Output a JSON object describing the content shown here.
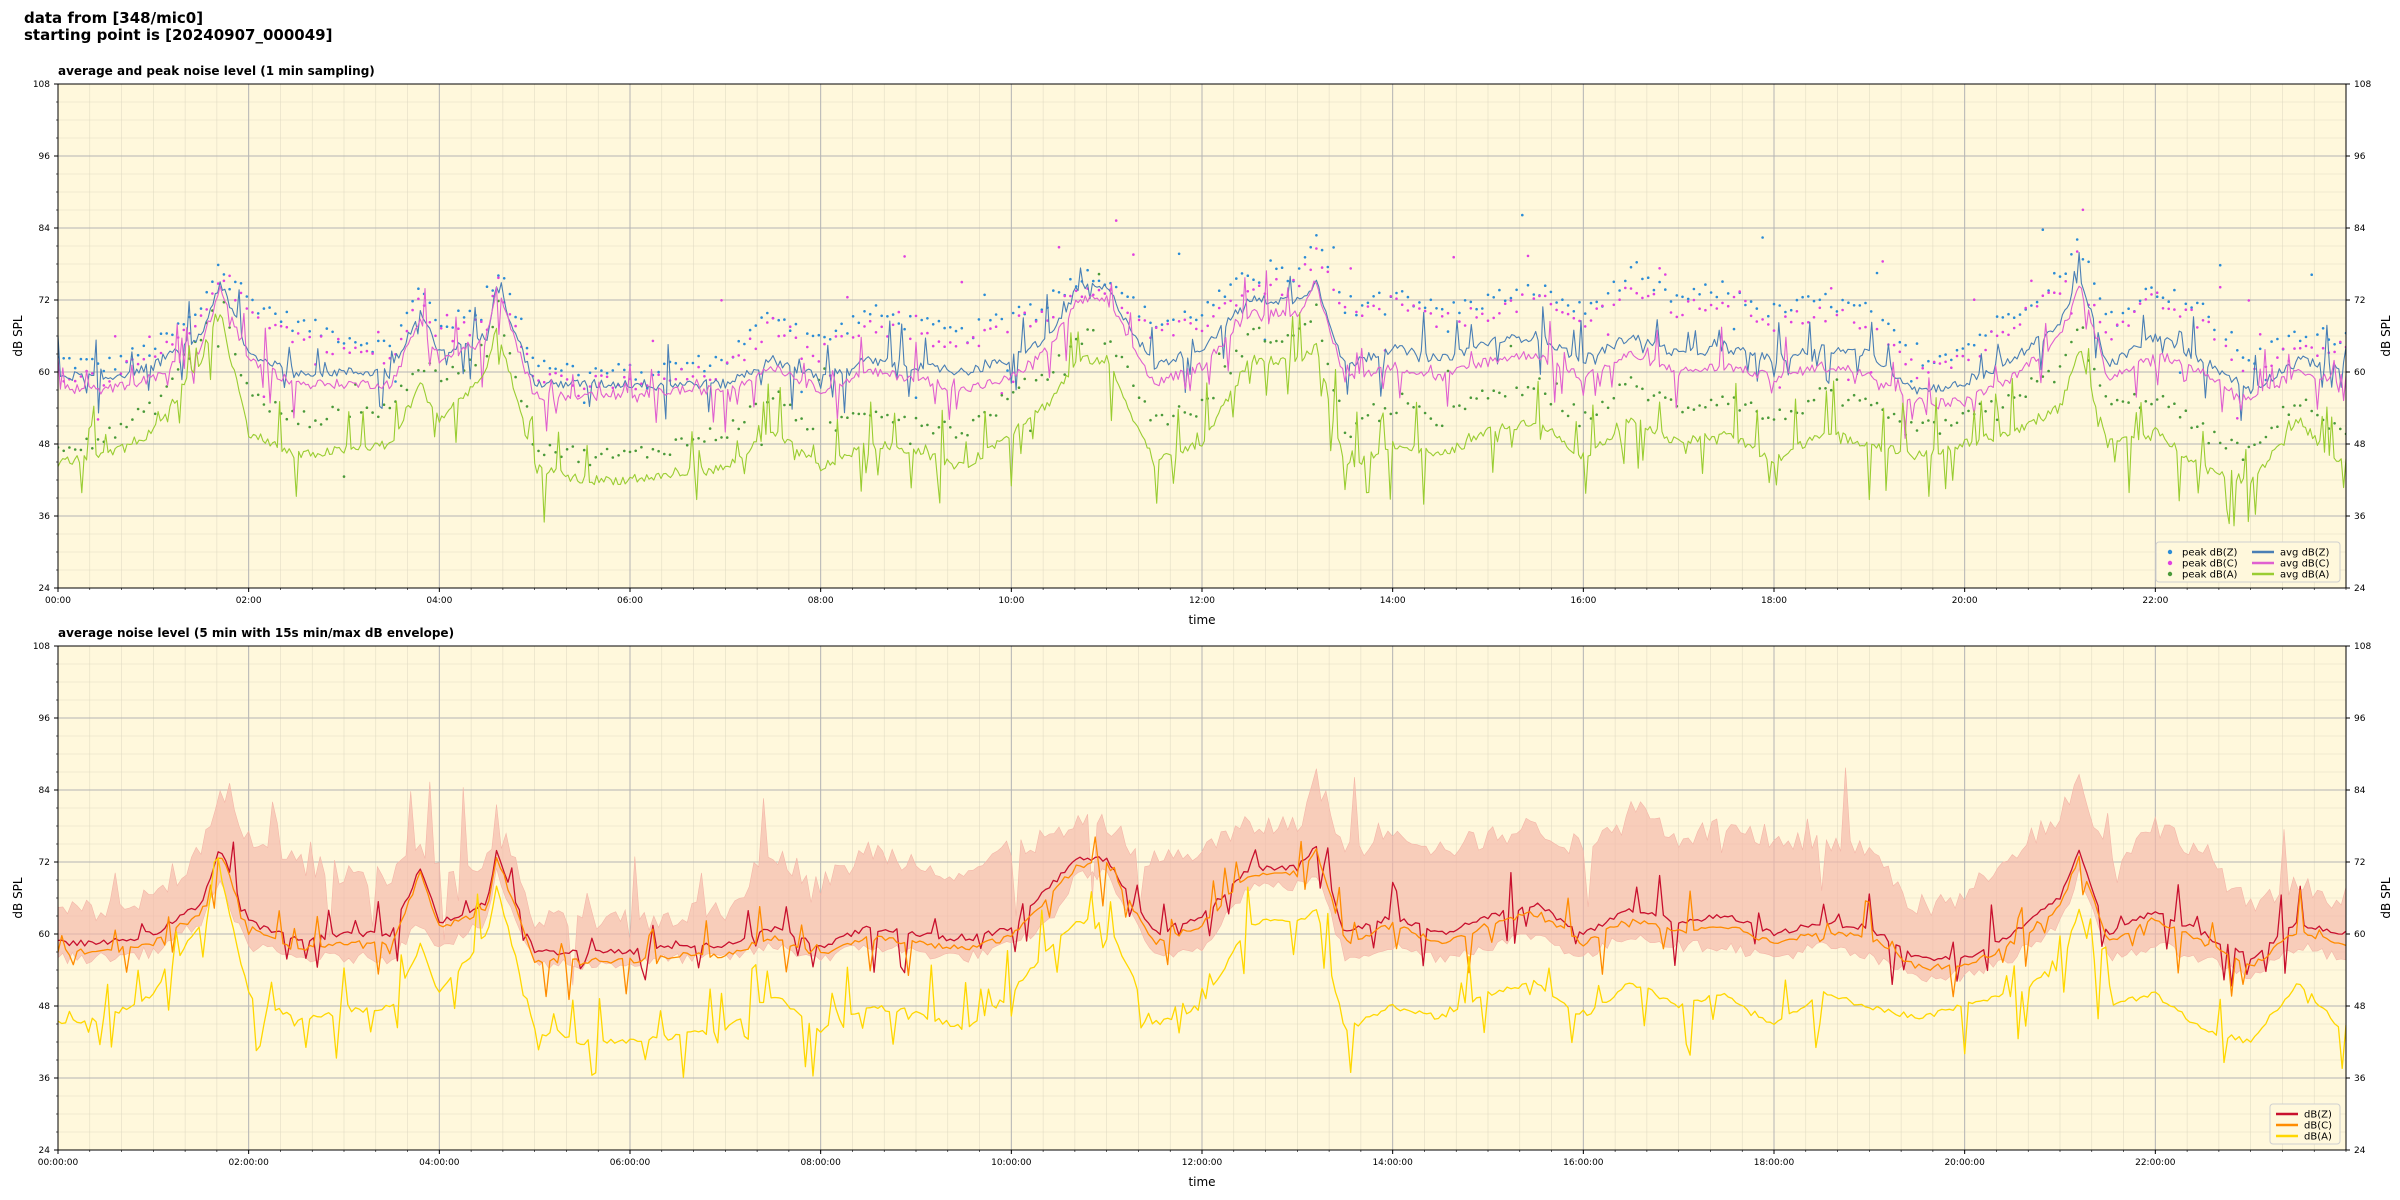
{
  "header": {
    "line1": "data from [348/mic0]",
    "line2": "starting point is [20240907_000049]"
  },
  "colors": {
    "plot_bg": "#fff8dc",
    "peak_z": "#2b8cd6",
    "peak_c": "#e040e0",
    "peak_a": "#4a9a3a",
    "avg_z": "#4a7fb5",
    "avg_c": "#e060d0",
    "avg_a": "#9acd32",
    "dbz": "#c8102e",
    "dbc": "#ff8c00",
    "dba": "#ffd700",
    "envelope": "#f4b6a8"
  },
  "chart_data": [
    {
      "type": "line",
      "title": "average and peak noise level (1 min sampling)",
      "xlabel": "time",
      "ylabel": "dB SPL",
      "ylabel_right": "dB SPL",
      "xlim": [
        0,
        24
      ],
      "ylim": [
        24,
        108
      ],
      "yticks": [
        24,
        36,
        48,
        60,
        72,
        84,
        96,
        108
      ],
      "xticks": [
        0,
        2,
        4,
        6,
        8,
        10,
        12,
        14,
        16,
        18,
        20,
        22
      ],
      "xtick_labels": [
        "00:00",
        "02:00",
        "04:00",
        "06:00",
        "08:00",
        "10:00",
        "12:00",
        "14:00",
        "16:00",
        "18:00",
        "20:00",
        "22:00"
      ],
      "grid": true,
      "legend_position": "bottom-right",
      "x_hours": [
        0,
        0.5,
        1,
        1.5,
        1.7,
        2,
        2.5,
        3,
        3.5,
        3.8,
        4,
        4.5,
        4.6,
        5,
        5.5,
        6,
        6.5,
        7,
        7.5,
        8,
        8.5,
        9,
        9.5,
        10,
        10.4,
        10.7,
        11,
        11.5,
        12,
        12.5,
        13,
        13.2,
        13.5,
        14,
        14.5,
        15,
        15.5,
        16,
        16.5,
        17,
        17.5,
        18,
        18.5,
        19,
        19.5,
        20,
        20.5,
        21,
        21.2,
        21.5,
        22,
        22.5,
        23,
        23.5,
        23.9
      ],
      "series": [
        {
          "name": "avg dB(Z)",
          "kind": "line",
          "values": [
            59.5,
            59,
            61,
            66,
            75,
            63,
            60,
            60,
            60,
            70,
            63,
            66,
            75,
            58,
            58,
            58,
            58,
            58,
            62,
            59,
            62,
            61,
            60,
            62,
            66,
            74,
            74,
            61,
            64,
            72,
            72,
            75,
            61,
            64,
            62,
            65,
            66,
            62,
            66,
            63,
            64,
            62,
            64,
            63,
            57,
            58,
            62,
            68,
            76,
            61,
            66,
            62,
            57,
            62,
            61
          ]
        },
        {
          "name": "avg dB(C)",
          "kind": "line",
          "values": [
            57.5,
            57,
            59,
            64,
            74,
            62,
            58,
            58,
            58,
            69,
            62,
            65,
            74,
            56,
            56,
            56,
            57,
            57,
            61,
            57,
            60,
            59,
            57,
            59,
            64,
            72,
            72,
            58,
            61,
            70,
            70,
            74,
            59,
            61,
            59,
            62,
            63,
            59,
            63,
            60,
            61,
            59,
            61,
            60,
            55,
            55,
            59,
            66,
            75,
            59,
            63,
            60,
            55,
            60,
            59
          ]
        },
        {
          "name": "avg dB(A)",
          "kind": "line",
          "values": [
            45,
            46,
            50,
            62,
            70,
            50,
            46,
            47,
            48,
            58,
            52,
            60,
            68,
            44,
            42,
            42,
            43,
            44,
            50,
            44,
            48,
            47,
            44,
            50,
            55,
            62,
            62,
            45,
            48,
            62,
            62,
            64,
            44,
            48,
            46,
            50,
            52,
            46,
            52,
            48,
            50,
            45,
            50,
            48,
            46,
            48,
            50,
            54,
            64,
            48,
            50,
            44,
            42,
            52,
            45
          ]
        },
        {
          "name": "peak dB(Z)",
          "kind": "points",
          "values": [
            62,
            61,
            64,
            70,
            79,
            72,
            68,
            66,
            64,
            74,
            68,
            70,
            78,
            62,
            60,
            60,
            61,
            62,
            70,
            65,
            70,
            68,
            66,
            70,
            72,
            76,
            76,
            68,
            70,
            76,
            76,
            82,
            70,
            74,
            70,
            72,
            74,
            70,
            76,
            72,
            74,
            70,
            72,
            70,
            62,
            64,
            70,
            76,
            82,
            68,
            74,
            70,
            62,
            66,
            66
          ]
        },
        {
          "name": "peak dB(C)",
          "kind": "points",
          "values": [
            60,
            59,
            62,
            68,
            77,
            70,
            66,
            64,
            62,
            72,
            66,
            68,
            76,
            60,
            58,
            58,
            59,
            60,
            68,
            63,
            68,
            66,
            64,
            68,
            70,
            74,
            74,
            66,
            68,
            74,
            74,
            80,
            68,
            72,
            68,
            70,
            72,
            68,
            74,
            70,
            72,
            68,
            70,
            68,
            60,
            62,
            68,
            74,
            80,
            66,
            72,
            68,
            60,
            64,
            64
          ]
        },
        {
          "name": "peak dB(A)",
          "kind": "points",
          "values": [
            48,
            49,
            54,
            66,
            73,
            56,
            52,
            53,
            54,
            62,
            58,
            64,
            72,
            48,
            46,
            46,
            48,
            50,
            56,
            50,
            54,
            52,
            50,
            56,
            60,
            66,
            66,
            52,
            54,
            66,
            66,
            70,
            50,
            54,
            52,
            56,
            58,
            52,
            58,
            54,
            56,
            52,
            56,
            54,
            50,
            52,
            56,
            60,
            68,
            54,
            56,
            50,
            46,
            56,
            50
          ]
        }
      ]
    },
    {
      "type": "line",
      "title": "average noise level (5 min with 15s min/max dB envelope)",
      "xlabel": "time",
      "ylabel": "dB SPL",
      "ylabel_right": "dB SPL",
      "xlim": [
        0,
        24
      ],
      "ylim": [
        24,
        108
      ],
      "yticks": [
        24,
        36,
        48,
        60,
        72,
        84,
        96,
        108
      ],
      "xticks": [
        0,
        2,
        4,
        6,
        8,
        10,
        12,
        14,
        16,
        18,
        20,
        22
      ],
      "xtick_labels": [
        "00:00:00",
        "02:00:00",
        "04:00:00",
        "06:00:00",
        "08:00:00",
        "10:00:00",
        "12:00:00",
        "14:00:00",
        "16:00:00",
        "18:00:00",
        "20:00:00",
        "22:00:00"
      ],
      "grid": true,
      "legend_position": "bottom-right",
      "x_hours": [
        0,
        0.5,
        1,
        1.5,
        1.7,
        2,
        2.5,
        3,
        3.5,
        3.8,
        4,
        4.5,
        4.6,
        5,
        5.5,
        6,
        6.5,
        7,
        7.5,
        8,
        8.5,
        9,
        9.5,
        10,
        10.4,
        10.7,
        11,
        11.5,
        12,
        12.5,
        13,
        13.2,
        13.5,
        14,
        14.5,
        15,
        15.5,
        16,
        16.5,
        17,
        17.5,
        18,
        18.5,
        19,
        19.5,
        20,
        20.5,
        21,
        21.2,
        21.5,
        22,
        22.5,
        23,
        23.5,
        23.9
      ],
      "envelope": {
        "name": "min/max envelope",
        "upper": [
          64,
          64,
          66,
          74,
          82,
          76,
          72,
          70,
          70,
          76,
          70,
          72,
          80,
          62,
          62,
          62,
          63,
          64,
          74,
          68,
          74,
          72,
          70,
          74,
          76,
          78,
          78,
          72,
          74,
          78,
          78,
          86,
          74,
          78,
          74,
          76,
          78,
          74,
          82,
          76,
          78,
          74,
          76,
          74,
          64,
          66,
          74,
          80,
          86,
          72,
          78,
          74,
          64,
          68,
          66
        ],
        "lower": [
          56,
          56,
          57,
          62,
          68,
          58,
          56,
          56,
          56,
          62,
          58,
          62,
          70,
          55,
          55,
          55,
          56,
          56,
          58,
          56,
          58,
          57,
          56,
          58,
          62,
          70,
          70,
          56,
          58,
          68,
          68,
          70,
          56,
          58,
          56,
          58,
          60,
          56,
          60,
          58,
          58,
          56,
          58,
          56,
          53,
          53,
          56,
          62,
          70,
          56,
          58,
          56,
          53,
          58,
          56
        ]
      },
      "series": [
        {
          "name": "dB(Z)",
          "kind": "line",
          "values": [
            58.5,
            58.5,
            60,
            65,
            74.5,
            62,
            59,
            60,
            60,
            71,
            62,
            65,
            74,
            57,
            57,
            57,
            58,
            58,
            61,
            58,
            61,
            60,
            59,
            61,
            68,
            72.5,
            72.5,
            60,
            63,
            71,
            71,
            75,
            60,
            63,
            60,
            63,
            65,
            60,
            64,
            62,
            63,
            60,
            62,
            61,
            56,
            56,
            60,
            66,
            74,
            60,
            64,
            60,
            56,
            62,
            60
          ]
        },
        {
          "name": "dB(C)",
          "kind": "line",
          "values": [
            57,
            57,
            58.5,
            63.5,
            73.5,
            61,
            57.5,
            58.5,
            58.5,
            70,
            61,
            64,
            73,
            55.5,
            55.5,
            55.5,
            56.5,
            56.5,
            59.5,
            56.5,
            59.5,
            58.5,
            57.5,
            59.5,
            66.5,
            71.5,
            71.5,
            58.5,
            61.5,
            70,
            70,
            74,
            58.5,
            61.5,
            58.5,
            61.5,
            63.5,
            58.5,
            62.5,
            60.5,
            61.5,
            58.5,
            60.5,
            59.5,
            54.5,
            54.5,
            58.5,
            64.5,
            73,
            58.5,
            62.5,
            58.5,
            54.5,
            60.5,
            58.5
          ]
        },
        {
          "name": "dB(A)",
          "kind": "line",
          "values": [
            45,
            46,
            50,
            62,
            70,
            50,
            46,
            47,
            48,
            58,
            50,
            60,
            68,
            44,
            42,
            42,
            43,
            44,
            50,
            44,
            48,
            47,
            44,
            50,
            58,
            62,
            62,
            45,
            48,
            62,
            62,
            64,
            44,
            48,
            46,
            50,
            52,
            46,
            52,
            48,
            50,
            45,
            50,
            48,
            46,
            48,
            50,
            54,
            64,
            48,
            50,
            44,
            42,
            52,
            45
          ]
        }
      ]
    }
  ]
}
